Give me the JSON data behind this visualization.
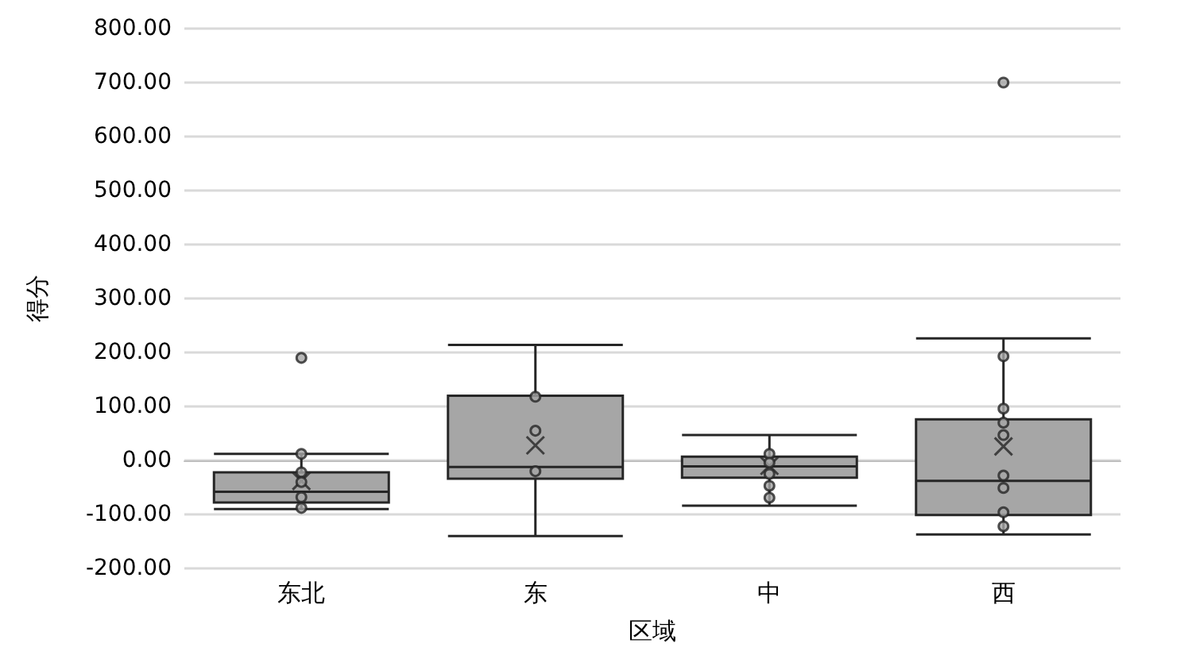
{
  "chart_data": {
    "type": "box",
    "xlabel": "区域",
    "ylabel": "得分",
    "categories": [
      "东北",
      "东",
      "中",
      "西"
    ],
    "boxes": [
      {
        "low": -90,
        "q1": -78,
        "median": -58,
        "q3": -22,
        "high": 12,
        "mean": -38,
        "outliers": [
          190
        ]
      },
      {
        "low": -140,
        "q1": -34,
        "median": -12,
        "q3": 120,
        "high": 214,
        "mean": 28
      },
      {
        "low": -84,
        "q1": -32,
        "median": -11,
        "q3": 7,
        "high": 47,
        "mean": -10
      },
      {
        "low": -137,
        "q1": -101,
        "median": -38,
        "q3": 76,
        "high": 226,
        "mean": 26,
        "outliers": [
          700
        ]
      }
    ],
    "color": "#a6a6a6",
    "series": [
      {
        "type": "scatter",
        "x": [
          "东北",
          "东北",
          "东北",
          "东北",
          "东北",
          "东",
          "东",
          "东",
          "中",
          "中",
          "中",
          "中",
          "中",
          "西",
          "西",
          "西",
          "西",
          "西",
          "西",
          "西",
          "西"
        ],
        "values": [
          12,
          -22,
          -40,
          -68,
          -88,
          118,
          55,
          -20,
          12,
          -4,
          -25,
          -47,
          -69,
          193,
          96,
          70,
          47,
          -28,
          -51,
          -96,
          -122
        ]
      }
    ],
    "ylim": [
      -200,
      800
    ],
    "yticks": [
      {
        "value": -200,
        "label": "-200.00"
      },
      {
        "value": -100,
        "label": "-100.00"
      },
      {
        "value": 0,
        "label": "0.00"
      },
      {
        "value": 100,
        "label": "100.00"
      },
      {
        "value": 200,
        "label": "200.00"
      },
      {
        "value": 300,
        "label": "300.00"
      },
      {
        "value": 400,
        "label": "400.00"
      },
      {
        "value": 500,
        "label": "500.00"
      },
      {
        "value": 600,
        "label": "600.00"
      },
      {
        "value": 700,
        "label": "700.00"
      },
      {
        "value": 800,
        "label": "800.00"
      }
    ],
    "grid": "y",
    "marker": "circle"
  }
}
